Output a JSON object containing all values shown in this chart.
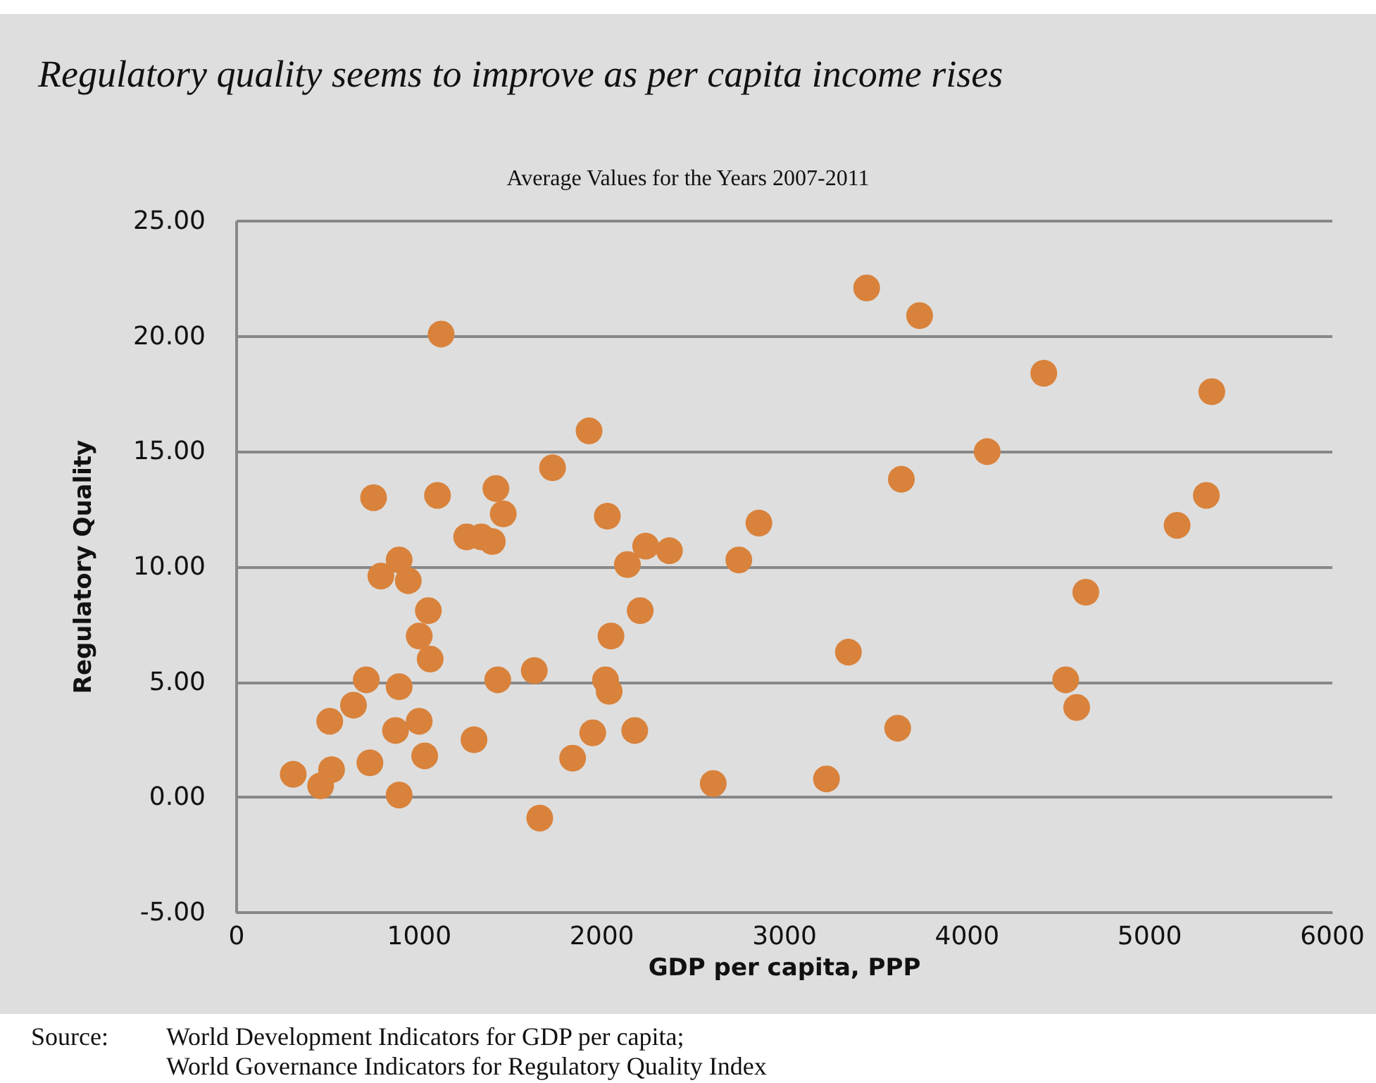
{
  "chart_data": {
    "type": "scatter",
    "title": "Regulatory quality seems to improve as per capita income rises",
    "subtitle": "Average Values for the Years 2007-2011",
    "xlabel": "GDP per capita, PPP",
    "ylabel": "Regulatory Quality",
    "x": [
      310,
      460,
      520,
      510,
      640,
      710,
      730,
      750,
      790,
      870,
      890,
      890,
      890,
      940,
      1000,
      1000,
      1030,
      1060,
      1050,
      1120,
      1100,
      1300,
      1260,
      1340,
      1400,
      1420,
      1460,
      1430,
      1630,
      1660,
      1730,
      1840,
      1930,
      1950,
      2030,
      2020,
      2040,
      2050,
      2140,
      2180,
      2210,
      2240,
      2370,
      2610,
      2750,
      2860,
      3230,
      3350,
      3450,
      3620,
      3640,
      3740,
      4110,
      4420,
      4540,
      4600,
      4650,
      5150,
      5310,
      5340
    ],
    "series": [
      {
        "color": "#d9823b",
        "values": [
          1.0,
          0.5,
          1.2,
          3.3,
          4.0,
          5.1,
          1.5,
          13.0,
          9.6,
          2.9,
          4.8,
          10.3,
          0.1,
          9.4,
          7.0,
          3.3,
          1.8,
          6.0,
          8.1,
          20.1,
          13.1,
          2.5,
          11.3,
          11.3,
          11.1,
          13.4,
          12.3,
          5.1,
          5.5,
          -0.9,
          14.3,
          1.7,
          15.9,
          2.8,
          12.2,
          5.1,
          4.6,
          7.0,
          10.1,
          2.9,
          8.1,
          10.9,
          10.7,
          0.6,
          10.3,
          11.9,
          0.8,
          6.3,
          22.1,
          3.0,
          13.8,
          20.9,
          15.0,
          18.4,
          5.1,
          3.9,
          8.9,
          11.8,
          13.1,
          17.6
        ]
      }
    ],
    "xlim": [
      0,
      6000
    ],
    "xticks": [
      0,
      1000,
      2000,
      3000,
      4000,
      5000,
      6000
    ],
    "ylim": [
      -5,
      25
    ],
    "yticks": [
      {
        "value": -5,
        "label": "-5.00"
      },
      {
        "value": 0,
        "label": "0.00"
      },
      {
        "value": 5,
        "label": "5.00"
      },
      {
        "value": 10,
        "label": "10.00"
      },
      {
        "value": 15,
        "label": "15.00"
      },
      {
        "value": 20,
        "label": "20.00"
      },
      {
        "value": 25,
        "label": "25.00"
      }
    ],
    "grid": "y",
    "marker": "circle",
    "annotations": [
      "Source:",
      "World Development Indicators for GDP per capita;",
      "World Governance Indicators for Regulatory Quality Index"
    ]
  }
}
